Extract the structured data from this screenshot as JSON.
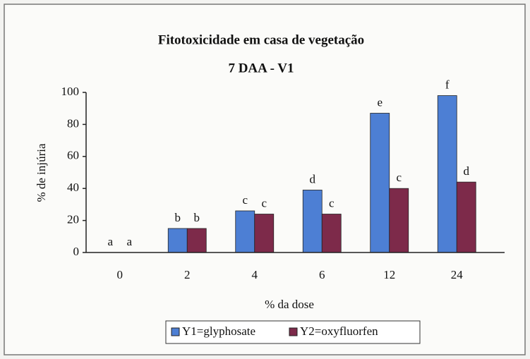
{
  "chart_data": {
    "type": "bar",
    "title": "Fitotoxicidade em casa de vegetação",
    "subtitle": "7 DAA - V1",
    "x_label": "% da dose",
    "y_label": "% de injúria",
    "categories": [
      "0",
      "2",
      "4",
      "6",
      "12",
      "24"
    ],
    "series": [
      {
        "name": "Y1=glyphosate",
        "color": "#4d7fd4",
        "values": [
          0,
          15,
          26,
          39,
          87,
          98
        ],
        "letters": [
          "a",
          "b",
          "c",
          "d",
          "e",
          "f"
        ]
      },
      {
        "name": "Y2=oxyfluorfen",
        "color": "#7d2a4a",
        "values": [
          0,
          15,
          24,
          24,
          40,
          44
        ],
        "letters": [
          "a",
          "b",
          "c",
          "c",
          "c",
          "d"
        ]
      }
    ],
    "ylim": [
      0,
      100
    ],
    "yticks": [
      0,
      20,
      40,
      60,
      80,
      100
    ],
    "grid": false
  }
}
